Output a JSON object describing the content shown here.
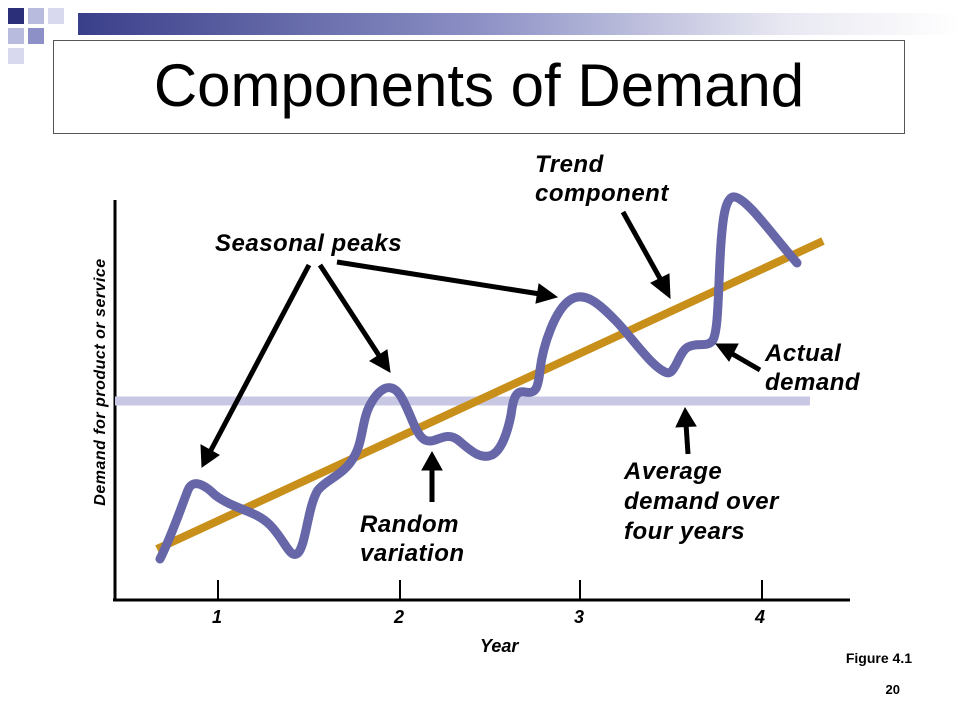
{
  "title": "Components of Demand",
  "labels": {
    "trend": "Trend\ncomponent",
    "seasonal": "Seasonal peaks",
    "actual": "Actual\ndemand",
    "random": "Random\nvariation",
    "average": "Average\ndemand over\nfour years"
  },
  "axes": {
    "ylabel": "Demand for product or service",
    "xlabel": "Year",
    "xticks": [
      "1",
      "2",
      "3",
      "4"
    ]
  },
  "figure_label": "Figure 4.1",
  "page_number": "20",
  "colors": {
    "trend": "#c8901a",
    "actual": "#6666a8",
    "average": "#c8c8e4",
    "topbar": "#3a3f8a"
  }
}
